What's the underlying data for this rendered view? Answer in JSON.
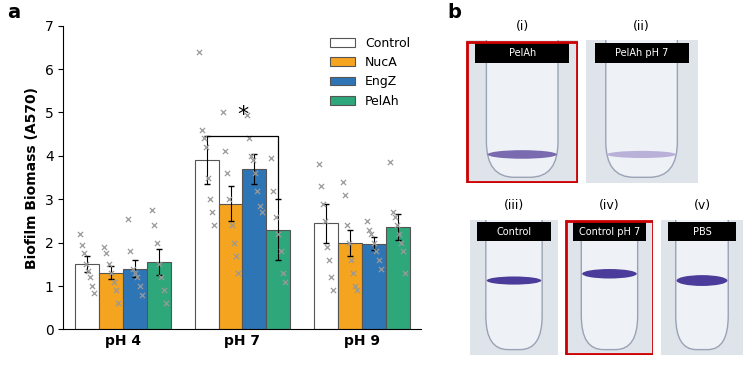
{
  "chart_data": {
    "type": "bar",
    "panel_label": "a",
    "y_label": "Biofilm Biomass (A570)",
    "categories": [
      "pH 4",
      "pH 7",
      "pH 9"
    ],
    "series": [
      {
        "name": "Control",
        "color": "#ffffff",
        "values": [
          1.5,
          3.9,
          2.45
        ],
        "errors": [
          0.18,
          0.55,
          0.45
        ],
        "points": [
          [
            2.2,
            1.95,
            1.75,
            1.5,
            1.35,
            1.2,
            1.0,
            0.85
          ],
          [
            6.4,
            4.6,
            4.4,
            4.2,
            3.5,
            3.0,
            2.7,
            2.4
          ],
          [
            3.8,
            3.3,
            2.9,
            2.5,
            1.9,
            1.6,
            1.2,
            0.9
          ]
        ]
      },
      {
        "name": "NucA",
        "color": "#f5a41f",
        "values": [
          1.3,
          2.9,
          2.0
        ],
        "errors": [
          0.15,
          0.4,
          0.3
        ],
        "points": [
          [
            1.9,
            1.75,
            1.5,
            1.3,
            1.1,
            0.9,
            0.6
          ],
          [
            5.0,
            4.1,
            3.6,
            3.0,
            2.4,
            2.0,
            1.7,
            1.3
          ],
          [
            3.4,
            3.1,
            2.4,
            2.0,
            1.6,
            1.3,
            1.0,
            0.9
          ]
        ]
      },
      {
        "name": "EngZ",
        "color": "#2e75b6",
        "values": [
          1.4,
          3.7,
          1.97
        ],
        "errors": [
          0.2,
          0.35,
          0.15
        ],
        "points": [
          [
            2.55,
            1.8,
            1.4,
            1.3,
            1.2,
            1.0,
            0.8
          ],
          [
            4.95,
            4.4,
            4.0,
            3.9,
            3.6,
            3.2,
            2.85,
            2.7
          ],
          [
            2.5,
            2.3,
            2.2,
            2.0,
            1.8,
            1.6,
            1.4
          ]
        ]
      },
      {
        "name": "PelAh",
        "color": "#2ea77a",
        "values": [
          1.55,
          2.3,
          2.35
        ],
        "errors": [
          0.3,
          0.7,
          0.3
        ],
        "points": [
          [
            2.75,
            2.4,
            2.0,
            1.5,
            1.2,
            0.9,
            0.6
          ],
          [
            3.95,
            3.2,
            2.6,
            2.2,
            1.8,
            1.3,
            1.1
          ],
          [
            3.85,
            2.7,
            2.6,
            2.4,
            2.2,
            2.0,
            1.8,
            1.3
          ]
        ]
      }
    ],
    "ylim": [
      0,
      7
    ],
    "yticks": [
      0,
      1,
      2,
      3,
      4,
      5,
      6,
      7
    ],
    "legend": "upper right",
    "annotations": [
      {
        "text": "*",
        "category": "pH 7",
        "from": "Control",
        "to": "PelAh",
        "bracket_y": 4.45,
        "end_y": 3.0,
        "text_y": 4.7
      }
    ]
  },
  "photo_panel": {
    "panel_label": "b",
    "photos": [
      {
        "number": "(i)",
        "caption": "PelAh",
        "highlighted": true
      },
      {
        "number": "(ii)",
        "caption": "PelAh pH 7",
        "highlighted": false
      },
      {
        "number": "(iii)",
        "caption": "Control",
        "highlighted": false
      },
      {
        "number": "(iv)",
        "caption": "Control pH 7",
        "highlighted": true
      },
      {
        "number": "(v)",
        "caption": "PBS",
        "highlighted": false
      }
    ]
  }
}
